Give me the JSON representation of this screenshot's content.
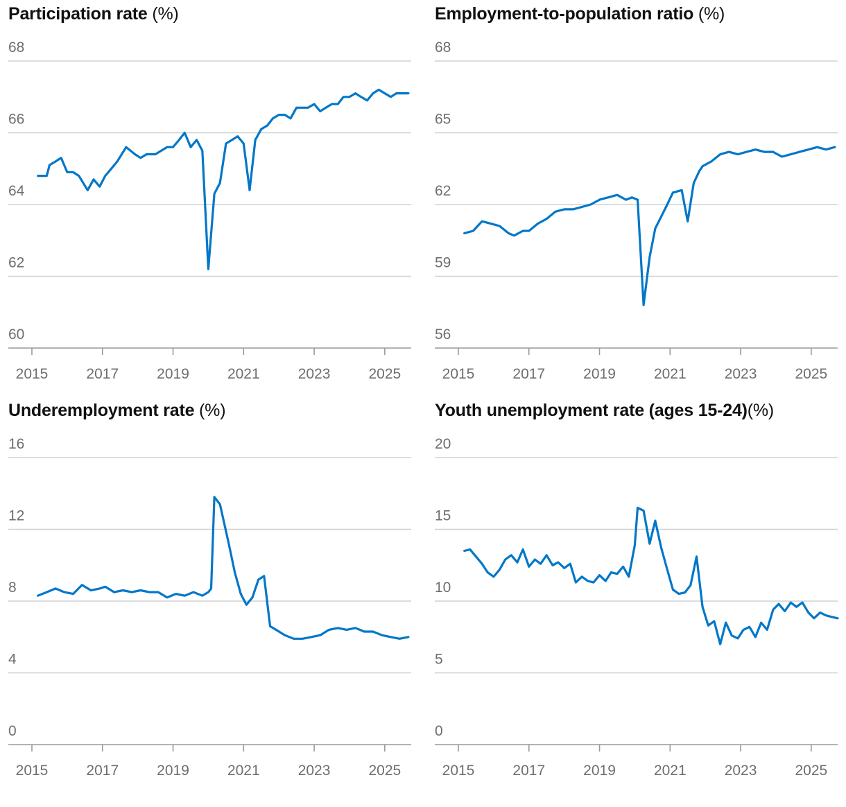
{
  "chart_data": [
    {
      "type": "line",
      "title": "Participation rate",
      "unit": "(%)",
      "ylim": [
        60,
        68
      ],
      "yticks": [
        60,
        62,
        64,
        66,
        68
      ],
      "xticks": [
        "2015",
        "2017",
        "2019",
        "2021",
        "2023",
        "2025"
      ],
      "xlim": [
        2015.0,
        2025.75
      ],
      "grid": true,
      "line_color": "#0077c8",
      "series": [
        {
          "x": [
            2015.17,
            2015.42,
            2015.5,
            2015.67,
            2015.83,
            2016.0,
            2016.17,
            2016.33,
            2016.58,
            2016.75,
            2016.92,
            2017.08,
            2017.25,
            2017.42,
            2017.67,
            2017.92,
            2018.08,
            2018.25,
            2018.5,
            2018.83,
            2019.0,
            2019.17,
            2019.33,
            2019.5,
            2019.67,
            2019.83,
            2020.0,
            2020.17,
            2020.33,
            2020.5,
            2020.67,
            2020.83,
            2021.0,
            2021.17,
            2021.33,
            2021.5,
            2021.67,
            2021.83,
            2022.0,
            2022.17,
            2022.33,
            2022.5,
            2022.67,
            2022.83,
            2023.0,
            2023.17,
            2023.33,
            2023.5,
            2023.67,
            2023.83,
            2024.0,
            2024.17,
            2024.33,
            2024.5,
            2024.67,
            2024.83,
            2025.0,
            2025.17,
            2025.33,
            2025.5,
            2025.67
          ],
          "y": [
            64.8,
            64.8,
            65.1,
            65.2,
            65.3,
            64.9,
            64.9,
            64.8,
            64.4,
            64.7,
            64.5,
            64.8,
            65.0,
            65.2,
            65.6,
            65.4,
            65.3,
            65.4,
            65.4,
            65.6,
            65.6,
            65.8,
            66.0,
            65.6,
            65.8,
            65.5,
            62.2,
            64.3,
            64.6,
            65.7,
            65.8,
            65.9,
            65.7,
            64.4,
            65.8,
            66.1,
            66.2,
            66.4,
            66.5,
            66.5,
            66.4,
            66.7,
            66.7,
            66.7,
            66.8,
            66.6,
            66.7,
            66.8,
            66.8,
            67.0,
            67.0,
            67.1,
            67.0,
            66.9,
            67.1,
            67.2,
            67.1,
            67.0,
            67.1,
            67.1,
            67.1
          ]
        }
      ]
    },
    {
      "type": "line",
      "title": "Employment-to-population ratio",
      "unit": "(%)",
      "ylim": [
        56,
        68
      ],
      "yticks": [
        56,
        59,
        62,
        65,
        68
      ],
      "xticks": [
        "2015",
        "2017",
        "2019",
        "2021",
        "2023",
        "2025"
      ],
      "xlim": [
        2015.0,
        2025.75
      ],
      "grid": true,
      "line_color": "#0077c8",
      "series": [
        {
          "x": [
            2015.17,
            2015.42,
            2015.67,
            2015.92,
            2016.17,
            2016.42,
            2016.58,
            2016.83,
            2017.0,
            2017.25,
            2017.5,
            2017.75,
            2018.0,
            2018.25,
            2018.5,
            2018.75,
            2019.0,
            2019.25,
            2019.5,
            2019.75,
            2019.92,
            2020.08,
            2020.25,
            2020.42,
            2020.58,
            2020.75,
            2020.92,
            2021.08,
            2021.33,
            2021.5,
            2021.67,
            2021.83,
            2021.92,
            2022.17,
            2022.42,
            2022.67,
            2022.92,
            2023.17,
            2023.42,
            2023.67,
            2023.92,
            2024.17,
            2024.42,
            2024.67,
            2024.92,
            2025.17,
            2025.42,
            2025.67
          ],
          "y": [
            60.8,
            60.9,
            61.3,
            61.2,
            61.1,
            60.8,
            60.7,
            60.9,
            60.9,
            61.2,
            61.4,
            61.7,
            61.8,
            61.8,
            61.9,
            62.0,
            62.2,
            62.3,
            62.4,
            62.2,
            62.3,
            62.2,
            57.8,
            59.8,
            61.0,
            61.5,
            62.0,
            62.5,
            62.6,
            61.3,
            62.9,
            63.4,
            63.6,
            63.8,
            64.1,
            64.2,
            64.1,
            64.2,
            64.3,
            64.2,
            64.2,
            64.0,
            64.1,
            64.2,
            64.3,
            64.4,
            64.3,
            64.4
          ]
        }
      ]
    },
    {
      "type": "line",
      "title": "Underemployment rate",
      "unit": "(%)",
      "ylim": [
        0,
        16
      ],
      "yticks": [
        0,
        4,
        8,
        12,
        16
      ],
      "xticks": [
        "2015",
        "2017",
        "2019",
        "2021",
        "2023",
        "2025"
      ],
      "xlim": [
        2015.0,
        2025.75
      ],
      "grid": true,
      "line_color": "#0077c8",
      "series": [
        {
          "x": [
            2015.17,
            2015.42,
            2015.67,
            2015.92,
            2016.17,
            2016.42,
            2016.67,
            2016.92,
            2017.08,
            2017.33,
            2017.58,
            2017.83,
            2018.08,
            2018.33,
            2018.58,
            2018.83,
            2019.08,
            2019.33,
            2019.58,
            2019.83,
            2020.0,
            2020.08,
            2020.17,
            2020.33,
            2020.58,
            2020.75,
            2020.92,
            2021.08,
            2021.25,
            2021.42,
            2021.58,
            2021.75,
            2021.92,
            2022.17,
            2022.42,
            2022.67,
            2022.92,
            2023.17,
            2023.42,
            2023.67,
            2023.92,
            2024.17,
            2024.42,
            2024.67,
            2024.92,
            2025.17,
            2025.42,
            2025.67
          ],
          "y": [
            8.3,
            8.5,
            8.7,
            8.5,
            8.4,
            8.9,
            8.6,
            8.7,
            8.8,
            8.5,
            8.6,
            8.5,
            8.6,
            8.5,
            8.5,
            8.2,
            8.4,
            8.3,
            8.5,
            8.3,
            8.5,
            8.7,
            13.8,
            13.4,
            11.2,
            9.6,
            8.4,
            7.8,
            8.2,
            9.2,
            9.4,
            6.6,
            6.4,
            6.1,
            5.9,
            5.9,
            6.0,
            6.1,
            6.4,
            6.5,
            6.4,
            6.5,
            6.3,
            6.3,
            6.1,
            6.0,
            5.9,
            6.0
          ]
        }
      ]
    },
    {
      "type": "line",
      "title": "Youth unemployment rate (ages 15-24)",
      "unit": "(%)",
      "ylim": [
        0,
        20
      ],
      "yticks": [
        0,
        5,
        10,
        15,
        20
      ],
      "xticks": [
        "2015",
        "2017",
        "2019",
        "2021",
        "2023",
        "2025"
      ],
      "xlim": [
        2015.0,
        2025.75
      ],
      "grid": true,
      "line_color": "#0077c8",
      "series": [
        {
          "x": [
            2015.17,
            2015.33,
            2015.5,
            2015.67,
            2015.83,
            2016.0,
            2016.17,
            2016.33,
            2016.5,
            2016.67,
            2016.83,
            2017.0,
            2017.17,
            2017.33,
            2017.5,
            2017.67,
            2017.83,
            2018.0,
            2018.17,
            2018.33,
            2018.5,
            2018.67,
            2018.83,
            2019.0,
            2019.17,
            2019.33,
            2019.5,
            2019.67,
            2019.83,
            2020.0,
            2020.08,
            2020.25,
            2020.42,
            2020.58,
            2020.75,
            2020.92,
            2021.08,
            2021.25,
            2021.42,
            2021.58,
            2021.75,
            2021.92,
            2022.08,
            2022.25,
            2022.42,
            2022.58,
            2022.75,
            2022.92,
            2023.08,
            2023.25,
            2023.42,
            2023.58,
            2023.75,
            2023.92,
            2024.08,
            2024.25,
            2024.42,
            2024.58,
            2024.75,
            2024.92,
            2025.08,
            2025.25,
            2025.42,
            2025.58,
            2025.75
          ],
          "y": [
            13.5,
            13.6,
            13.1,
            12.6,
            12.0,
            11.7,
            12.2,
            12.9,
            13.2,
            12.7,
            13.6,
            12.4,
            12.9,
            12.6,
            13.2,
            12.5,
            12.7,
            12.3,
            12.6,
            11.3,
            11.7,
            11.4,
            11.3,
            11.8,
            11.4,
            12.0,
            11.9,
            12.4,
            11.7,
            13.9,
            16.5,
            16.3,
            14.0,
            15.6,
            13.7,
            12.2,
            10.8,
            10.5,
            10.6,
            11.1,
            13.1,
            9.6,
            8.3,
            8.6,
            7.0,
            8.5,
            7.6,
            7.4,
            8.0,
            8.2,
            7.5,
            8.5,
            8.0,
            9.4,
            9.8,
            9.3,
            9.9,
            9.6,
            9.9,
            9.2,
            8.8,
            9.2,
            9.0,
            8.9,
            8.8
          ]
        }
      ]
    }
  ]
}
